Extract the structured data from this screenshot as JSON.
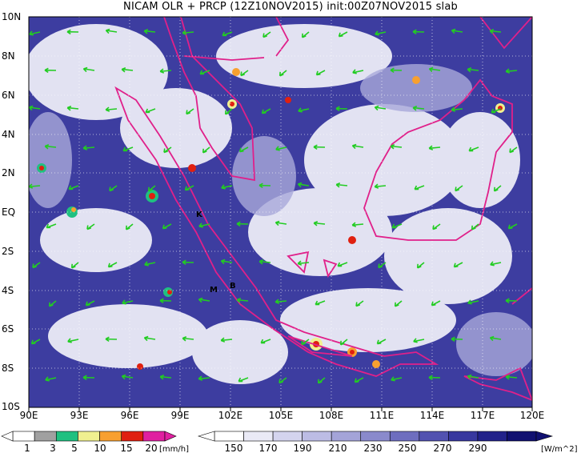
{
  "title": "NICAM OLR + PRCP (12Z10NOV2015) init:00Z07NOV2015 slab",
  "lat_labels": [
    "10N",
    "8N",
    "6N",
    "4N",
    "2N",
    "EQ",
    "2S",
    "4S",
    "6S",
    "8S",
    "10S"
  ],
  "lon_labels": [
    "90E",
    "93E",
    "96E",
    "99E",
    "102E",
    "105E",
    "108E",
    "111E",
    "114E",
    "117E",
    "120E"
  ],
  "city_markers": [
    {
      "label": "K",
      "lat": 0.0,
      "lon": 99.3
    },
    {
      "label": "M",
      "lat": -4.2,
      "lon": 100.6
    },
    {
      "label": "B",
      "lat": -3.9,
      "lon": 102.2
    }
  ],
  "precip_legend": {
    "ticks": [
      "1",
      "3",
      "5",
      "10",
      "15",
      "20"
    ],
    "unit": "[mm/h]",
    "colors": [
      "#ffffff",
      "#a0a0a0",
      "#20c080",
      "#f0f090",
      "#f8a030",
      "#e02010",
      "#e020a0"
    ]
  },
  "olr_legend": {
    "ticks": [
      "150",
      "170",
      "190",
      "210",
      "230",
      "250",
      "270",
      "290"
    ],
    "unit": "[W/m^2]",
    "colors": [
      "#ffffff",
      "#eaeaf6",
      "#d4d4ee",
      "#bcbce4",
      "#a4a4d8",
      "#8a8acc",
      "#6e6ebf",
      "#5252b0",
      "#38389f",
      "#22228a",
      "#101070"
    ]
  },
  "colors": {
    "coast": "#e0208a",
    "wind_arrow": "#22cc22",
    "grid": "#ffffff",
    "ocean_deep": "#2a2a90"
  }
}
